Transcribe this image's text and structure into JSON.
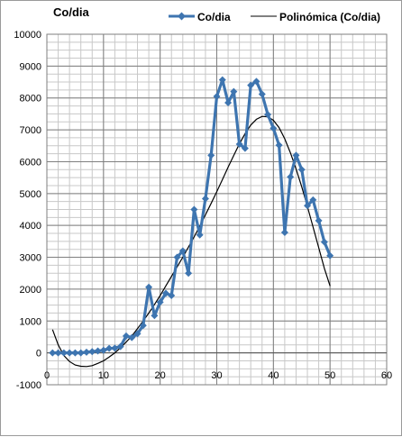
{
  "chart_data": {
    "type": "line",
    "title": "Co/dia",
    "xlim": [
      0,
      60
    ],
    "ylim": [
      -1000,
      10000
    ],
    "x_ticks": [
      0,
      10,
      20,
      30,
      40,
      50,
      60
    ],
    "y_ticks": [
      -1000,
      0,
      1000,
      2000,
      3000,
      4000,
      5000,
      6000,
      7000,
      8000,
      9000,
      10000
    ],
    "x_minor_step": 2,
    "y_minor_step": 250,
    "grid": true,
    "legend_position": "top-right",
    "series": [
      {
        "name": "Co/dia",
        "style": "line-markers",
        "color": "#3e75b0",
        "marker": "diamond",
        "x": [
          1,
          2,
          3,
          4,
          5,
          6,
          7,
          8,
          9,
          10,
          11,
          12,
          13,
          14,
          15,
          16,
          17,
          18,
          19,
          20,
          21,
          22,
          23,
          24,
          25,
          26,
          27,
          28,
          29,
          30,
          31,
          32,
          33,
          34,
          35,
          36,
          37,
          38,
          39,
          40,
          41,
          42,
          43,
          44,
          45,
          46,
          47,
          48,
          49,
          50
        ],
        "y": [
          0,
          0,
          0,
          0,
          0,
          0,
          20,
          40,
          60,
          80,
          140,
          150,
          200,
          530,
          480,
          600,
          860,
          2060,
          1170,
          1590,
          1870,
          1800,
          3000,
          3200,
          2500,
          4500,
          3700,
          4840,
          6200,
          8050,
          8570,
          7850,
          8200,
          6550,
          6420,
          8400,
          8520,
          8120,
          7480,
          7050,
          6520,
          3780,
          5520,
          6200,
          5750,
          4620,
          4800,
          4150,
          3480,
          3050
        ]
      },
      {
        "name": "Polinómica (Co/dia)",
        "style": "line",
        "color": "#000000",
        "x": [
          1,
          2,
          3,
          4,
          5,
          6,
          7,
          8,
          9,
          10,
          11,
          12,
          13,
          14,
          15,
          16,
          17,
          18,
          19,
          20,
          21,
          22,
          23,
          24,
          25,
          26,
          27,
          28,
          29,
          30,
          31,
          32,
          33,
          34,
          35,
          36,
          37,
          38,
          39,
          40,
          41,
          42,
          43,
          44,
          45,
          46,
          47,
          48,
          49,
          50
        ],
        "y": [
          730,
          250,
          -80,
          -270,
          -380,
          -420,
          -430,
          -400,
          -330,
          -250,
          -130,
          0,
          160,
          340,
          530,
          760,
          1000,
          1250,
          1520,
          1800,
          2100,
          2400,
          2700,
          3000,
          3320,
          3640,
          3980,
          4330,
          4690,
          5060,
          5440,
          5830,
          6200,
          6560,
          6880,
          7150,
          7330,
          7420,
          7410,
          7300,
          7070,
          6720,
          6280,
          5770,
          5210,
          4600,
          3950,
          3300,
          2650,
          2100
        ]
      }
    ]
  }
}
